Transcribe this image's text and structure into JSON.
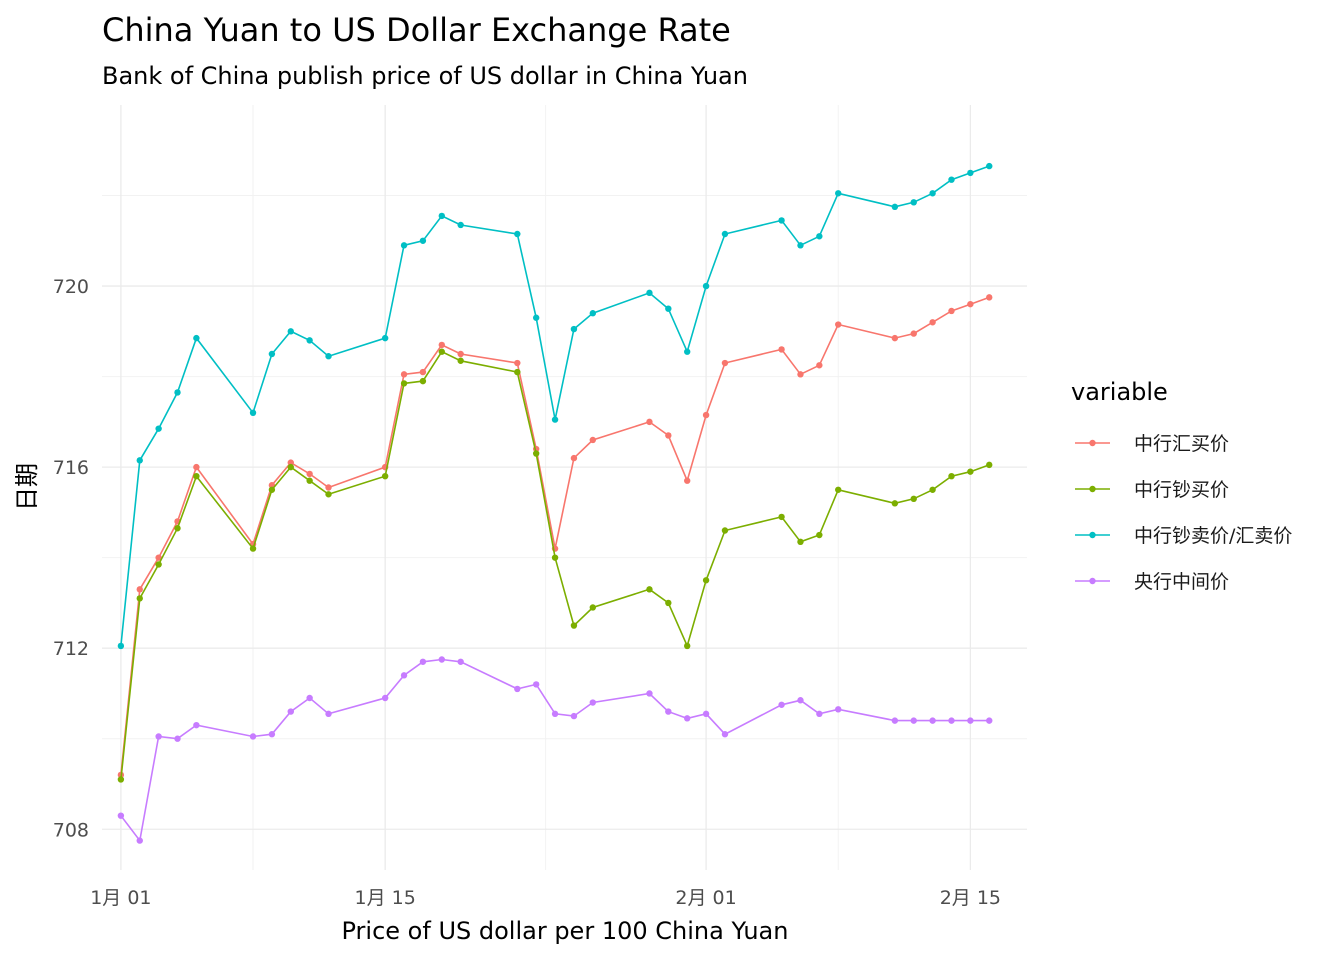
{
  "chart_data": {
    "type": "line",
    "title": "China Yuan to US Dollar Exchange Rate",
    "subtitle": "Bank of China publish price of US dollar in China Yuan",
    "xlabel": "Price of US dollar per 100 China Yuan",
    "ylabel": "日期",
    "x_ticks": [
      {
        "date": "2016-01-01",
        "label": "1月 01"
      },
      {
        "date": "2016-01-15",
        "label": "1月 15"
      },
      {
        "date": "2016-02-01",
        "label": "2月 01"
      },
      {
        "date": "2016-02-15",
        "label": "2月 15"
      }
    ],
    "y_ticks": [
      708,
      712,
      716,
      720
    ],
    "xlim": [
      "2015-12-31",
      "2016-02-18"
    ],
    "ylim": [
      707.1,
      724.0
    ],
    "grid": true,
    "legend_title": "variable",
    "legend_position": "right",
    "x": [
      "2016-01-01",
      "2016-01-02",
      "2016-01-03",
      "2016-01-04",
      "2016-01-05",
      "2016-01-08",
      "2016-01-09",
      "2016-01-10",
      "2016-01-11",
      "2016-01-12",
      "2016-01-15",
      "2016-01-16",
      "2016-01-17",
      "2016-01-18",
      "2016-01-19",
      "2016-01-22",
      "2016-01-23",
      "2016-01-24",
      "2016-01-25",
      "2016-01-26",
      "2016-01-29",
      "2016-01-30",
      "2016-01-31",
      "2016-02-01",
      "2016-02-02",
      "2016-02-05",
      "2016-02-06",
      "2016-02-07",
      "2016-02-08",
      "2016-02-11",
      "2016-02-12",
      "2016-02-13",
      "2016-02-14",
      "2016-02-15",
      "2016-02-16"
    ],
    "series": [
      {
        "name": "中行汇买价",
        "color": "#F8766D",
        "values": [
          709.2,
          713.3,
          714.0,
          714.8,
          716.0,
          714.3,
          715.6,
          716.1,
          715.85,
          715.55,
          716.0,
          718.05,
          718.1,
          718.7,
          718.5,
          718.3,
          716.4,
          714.2,
          716.2,
          716.6,
          717.0,
          716.7,
          715.7,
          717.15,
          718.3,
          718.6,
          718.05,
          718.25,
          719.15,
          718.85,
          718.95,
          719.2,
          719.45,
          719.6,
          719.75
        ]
      },
      {
        "name": "中行钞买价",
        "color": "#7CAE00",
        "values": [
          709.1,
          713.1,
          713.85,
          714.65,
          715.8,
          714.2,
          715.5,
          716.0,
          715.7,
          715.4,
          715.8,
          717.85,
          717.9,
          718.55,
          718.35,
          718.1,
          716.3,
          714.0,
          712.5,
          712.9,
          713.3,
          713.0,
          712.05,
          713.5,
          714.6,
          714.9,
          714.35,
          714.5,
          715.5,
          715.2,
          715.3,
          715.5,
          715.8,
          715.9,
          716.05
        ]
      },
      {
        "name": "中行钞卖价/汇卖价",
        "color": "#00BFC4",
        "values": [
          712.05,
          716.15,
          716.85,
          717.65,
          718.85,
          717.2,
          718.5,
          719.0,
          718.8,
          718.45,
          718.85,
          720.9,
          721.0,
          721.55,
          721.35,
          721.15,
          719.3,
          717.05,
          719.05,
          719.4,
          719.85,
          719.5,
          718.55,
          720.0,
          721.15,
          721.45,
          720.9,
          721.1,
          722.05,
          721.75,
          721.85,
          722.05,
          722.35,
          722.5,
          722.65
        ]
      },
      {
        "name": "央行中间价",
        "color": "#C77CFF",
        "values": [
          708.3,
          707.75,
          710.05,
          710.0,
          710.3,
          710.05,
          710.1,
          710.6,
          710.9,
          710.55,
          710.9,
          711.4,
          711.7,
          711.75,
          711.7,
          711.1,
          711.2,
          710.55,
          710.5,
          710.8,
          711.0,
          710.6,
          710.45,
          710.55,
          710.1,
          710.75,
          710.85,
          710.55,
          710.65,
          710.4,
          710.4,
          710.4,
          710.4,
          710.4,
          710.4
        ]
      }
    ]
  }
}
